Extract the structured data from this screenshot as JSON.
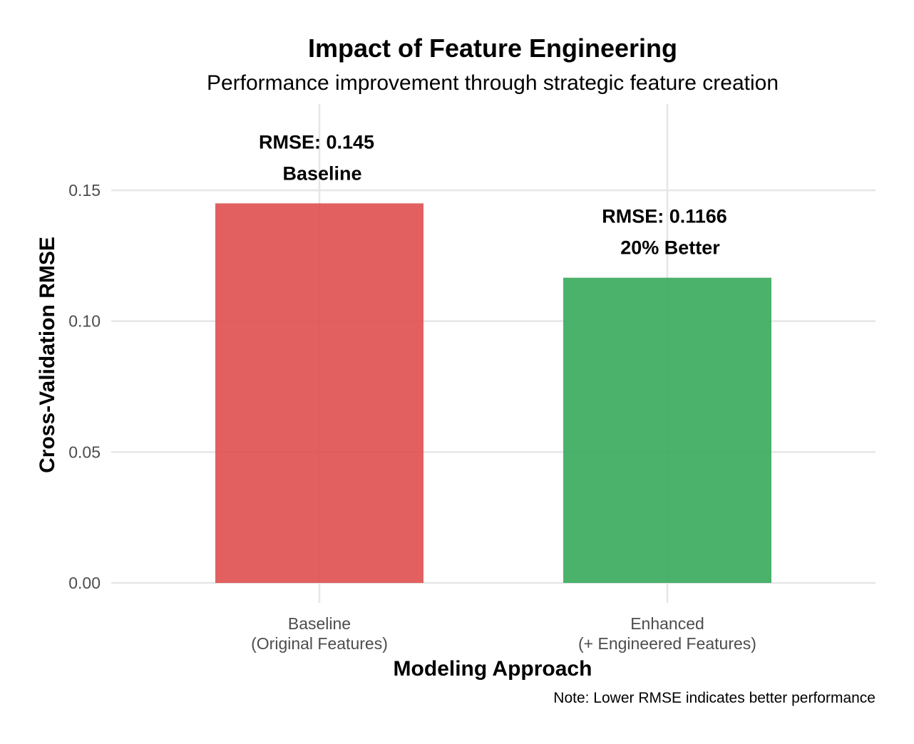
{
  "chart_data": {
    "type": "bar",
    "title": "Impact of Feature Engineering",
    "subtitle": "Performance improvement through strategic feature creation",
    "xlabel": "Modeling Approach",
    "ylabel": "Cross-Validation RMSE",
    "caption": "Note: Lower RMSE indicates better performance",
    "categories": [
      [
        "Baseline",
        "(Original Features)"
      ],
      [
        "Enhanced",
        "(+ Engineered Features)"
      ]
    ],
    "values": [
      0.145,
      0.1166
    ],
    "colors": [
      "#e05252",
      "#3cab5f"
    ],
    "bar_labels": [
      [
        "RMSE: 0.145",
        "Baseline"
      ],
      [
        "RMSE: 0.1166",
        "20% Better"
      ]
    ],
    "yticks": [
      0.0,
      0.05,
      0.1,
      0.15
    ],
    "ytick_labels": [
      "0.00",
      "0.05",
      "0.10",
      "0.15"
    ],
    "ylim": [
      0,
      0.178
    ],
    "grid": true
  }
}
